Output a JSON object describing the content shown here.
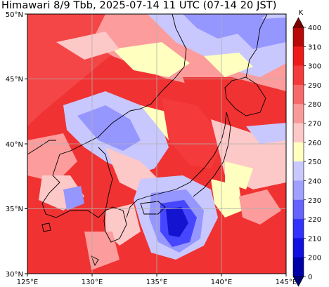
{
  "title": "Himawari 8/9 Tbb, 2025-07-14 11 UTC (07-14 20 JST)",
  "colorbar": {
    "unit": "K",
    "labels": [
      "400",
      "310",
      "300",
      "290",
      "280",
      "270",
      "260",
      "250",
      "240",
      "230",
      "220",
      "210",
      "200",
      "0"
    ],
    "colors": [
      "#7a0000",
      "#b80808",
      "#ee1a1a",
      "#f43a3a",
      "#f66a6a",
      "#f89a9a",
      "#fcc8c8",
      "#ffffc0",
      "#c8c8ff",
      "#a0a0ff",
      "#6464ff",
      "#3232ff",
      "#1010e0",
      "#0000a8",
      "#000078"
    ]
  },
  "axes": {
    "lon_ticks": [
      "125°E",
      "130°E",
      "135°E",
      "140°E",
      "145°E"
    ],
    "lat_ticks": [
      "50°N",
      "45°N",
      "40°N",
      "35°N",
      "30°N"
    ]
  },
  "palette": {
    "hot": "#f03232",
    "warm": "#f86464",
    "mid": "#fc9c9c",
    "pale": "#fcc8c8",
    "yellow": "#ffffc0",
    "lightblue": "#c8c8ff",
    "blue": "#9696ff",
    "deepblue": "#4646ff",
    "darkblue": "#1414d0"
  }
}
